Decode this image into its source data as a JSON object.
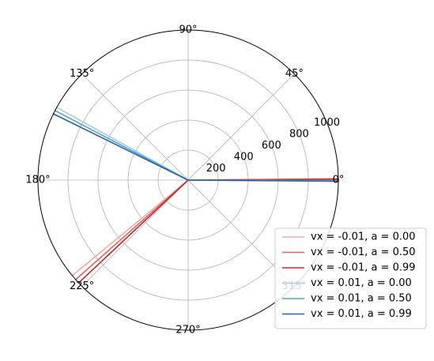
{
  "chart_data": {
    "type": "polar-line",
    "theta_unit": "degrees",
    "r_lim": [
      0,
      1000
    ],
    "r_ticks": [
      200,
      400,
      600,
      800,
      1000
    ],
    "r_tick_labels": [
      "200",
      "400",
      "600",
      "800",
      "1000"
    ],
    "theta_ticks": [
      0,
      45,
      90,
      135,
      180,
      225,
      270,
      315
    ],
    "theta_tick_labels": [
      "0°",
      "45°",
      "90°",
      "135°",
      "180°",
      "225°",
      "270°",
      "315°"
    ],
    "grid": true,
    "legend_position": "lower-right",
    "series": [
      {
        "name": "vx = -0.01, a = 0.00",
        "color": "#f4aaa4",
        "theta": [
          0,
          0.6,
          0,
          219.5,
          0
        ],
        "r": [
          0,
          1000,
          0,
          1050,
          0
        ]
      },
      {
        "name": "vx = -0.01, a = 0.50",
        "color": "#e06560",
        "theta": [
          0,
          0.45,
          0,
          221.5,
          0
        ],
        "r": [
          0,
          1000,
          0,
          1055,
          0
        ]
      },
      {
        "name": "vx = -0.01, a = 0.99",
        "color": "#c0282d",
        "theta": [
          0,
          0.3,
          0,
          223.2,
          0
        ],
        "r": [
          0,
          1000,
          0,
          1060,
          0
        ]
      },
      {
        "name": "vx = 0.01, a = 0.00",
        "color": "#a6cde3",
        "theta": [
          0,
          -0.25,
          0,
          151.0,
          0
        ],
        "r": [
          0,
          1000,
          0,
          1040,
          0
        ]
      },
      {
        "name": "vx = 0.01, a = 0.50",
        "color": "#5a9ecb",
        "theta": [
          0,
          -0.35,
          0,
          152.4,
          0
        ],
        "r": [
          0,
          1000,
          0,
          1030,
          0
        ]
      },
      {
        "name": "vx = 0.01, a = 0.99",
        "color": "#1f66a7",
        "theta": [
          0,
          -0.45,
          0,
          153.8,
          0
        ],
        "r": [
          0,
          1000,
          0,
          1025,
          0
        ]
      }
    ]
  }
}
